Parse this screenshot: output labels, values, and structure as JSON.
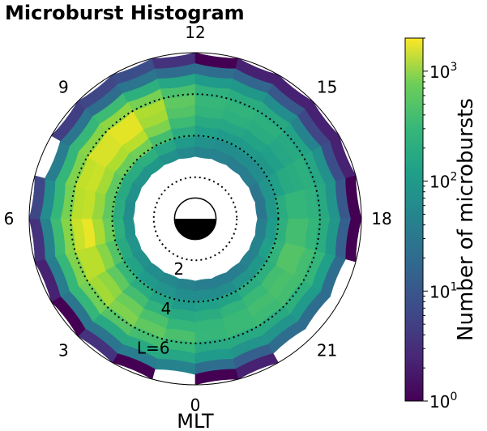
{
  "title": "Microburst Histogram",
  "chart_data": {
    "type": "heatmap",
    "projection": "polar",
    "title": "Microburst Histogram",
    "angular_axis": {
      "label": "MLT",
      "ticks": [
        "12",
        "15",
        "18",
        "21",
        "0",
        "3",
        "6",
        "9"
      ],
      "tick_values": [
        12,
        15,
        18,
        21,
        0,
        3,
        6,
        9
      ],
      "range": [
        0,
        24
      ],
      "orientation": "MLT 12 at top, 6 at right, 0 at bottom, 18 at left"
    },
    "radial_axis": {
      "quantity": "L",
      "range": [
        0,
        8
      ],
      "labels": [
        "2",
        "4",
        "L=6"
      ],
      "label_values": [
        2,
        4,
        6
      ],
      "rings_dotted": [
        2,
        4,
        6
      ]
    },
    "earth_symbol": {
      "day_side": "top (white)",
      "night_side": "bottom (black)"
    },
    "bins": {
      "mlt_width": 1,
      "l_edges": [
        3,
        3.5,
        4,
        4.5,
        5,
        5.5,
        6,
        6.5,
        7,
        7.5,
        8
      ]
    },
    "colorbar": {
      "label": "Number of microbursts",
      "scale": "log",
      "ticks": [
        "10^0",
        "10^1",
        "10^2",
        "10^3"
      ],
      "range": [
        1,
        2000
      ],
      "colormap": "viridis"
    },
    "counts_by_mlt": {
      "note": "rows = MLT 0..23, columns = L bins [3-3.5, 3.5-4, 4-4.5, 4.5-5, 5-5.5, 5.5-6, 6-6.5, 6.5-7, 7-7.5, 7.5-8]; 0 = no data",
      "rows": [
        [
          30,
          40,
          60,
          100,
          150,
          220,
          160,
          90,
          30,
          0
        ],
        [
          35,
          50,
          80,
          130,
          220,
          300,
          200,
          100,
          25,
          1
        ],
        [
          40,
          60,
          110,
          200,
          350,
          450,
          260,
          100,
          20,
          3
        ],
        [
          45,
          80,
          160,
          300,
          550,
          700,
          380,
          150,
          20,
          1
        ],
        [
          50,
          100,
          250,
          500,
          900,
          900,
          450,
          160,
          25,
          2
        ],
        [
          45,
          120,
          350,
          750,
          1600,
          1100,
          500,
          180,
          30,
          3
        ],
        [
          40,
          110,
          300,
          600,
          1000,
          900,
          400,
          150,
          40,
          5
        ],
        [
          45,
          100,
          300,
          700,
          1100,
          1000,
          450,
          150,
          25,
          0
        ],
        [
          50,
          110,
          350,
          800,
          1300,
          1300,
          500,
          160,
          20,
          4
        ],
        [
          55,
          120,
          380,
          900,
          1500,
          1500,
          550,
          180,
          15,
          5
        ],
        [
          45,
          90,
          200,
          450,
          700,
          800,
          400,
          120,
          20,
          6
        ],
        [
          35,
          60,
          110,
          180,
          250,
          300,
          220,
          90,
          15,
          3
        ],
        [
          30,
          45,
          70,
          100,
          140,
          160,
          130,
          60,
          15,
          1
        ],
        [
          28,
          40,
          60,
          90,
          120,
          140,
          110,
          55,
          12,
          2
        ],
        [
          25,
          40,
          60,
          80,
          110,
          120,
          100,
          40,
          8,
          2
        ],
        [
          25,
          40,
          55,
          70,
          90,
          100,
          80,
          30,
          5,
          2
        ],
        [
          20,
          50,
          70,
          100,
          110,
          120,
          90,
          45,
          6,
          2
        ],
        [
          20,
          55,
          110,
          150,
          150,
          130,
          100,
          50,
          8,
          1
        ],
        [
          25,
          60,
          120,
          200,
          200,
          150,
          110,
          55,
          10,
          1
        ],
        [
          30,
          70,
          140,
          250,
          250,
          200,
          150,
          70,
          15,
          0
        ],
        [
          28,
          55,
          120,
          200,
          220,
          200,
          120,
          60,
          15,
          0
        ],
        [
          25,
          50,
          110,
          170,
          200,
          180,
          100,
          50,
          15,
          0
        ],
        [
          25,
          40,
          80,
          140,
          170,
          170,
          100,
          50,
          10,
          2
        ],
        [
          25,
          40,
          70,
          110,
          150,
          160,
          100,
          60,
          15,
          1
        ]
      ]
    }
  }
}
